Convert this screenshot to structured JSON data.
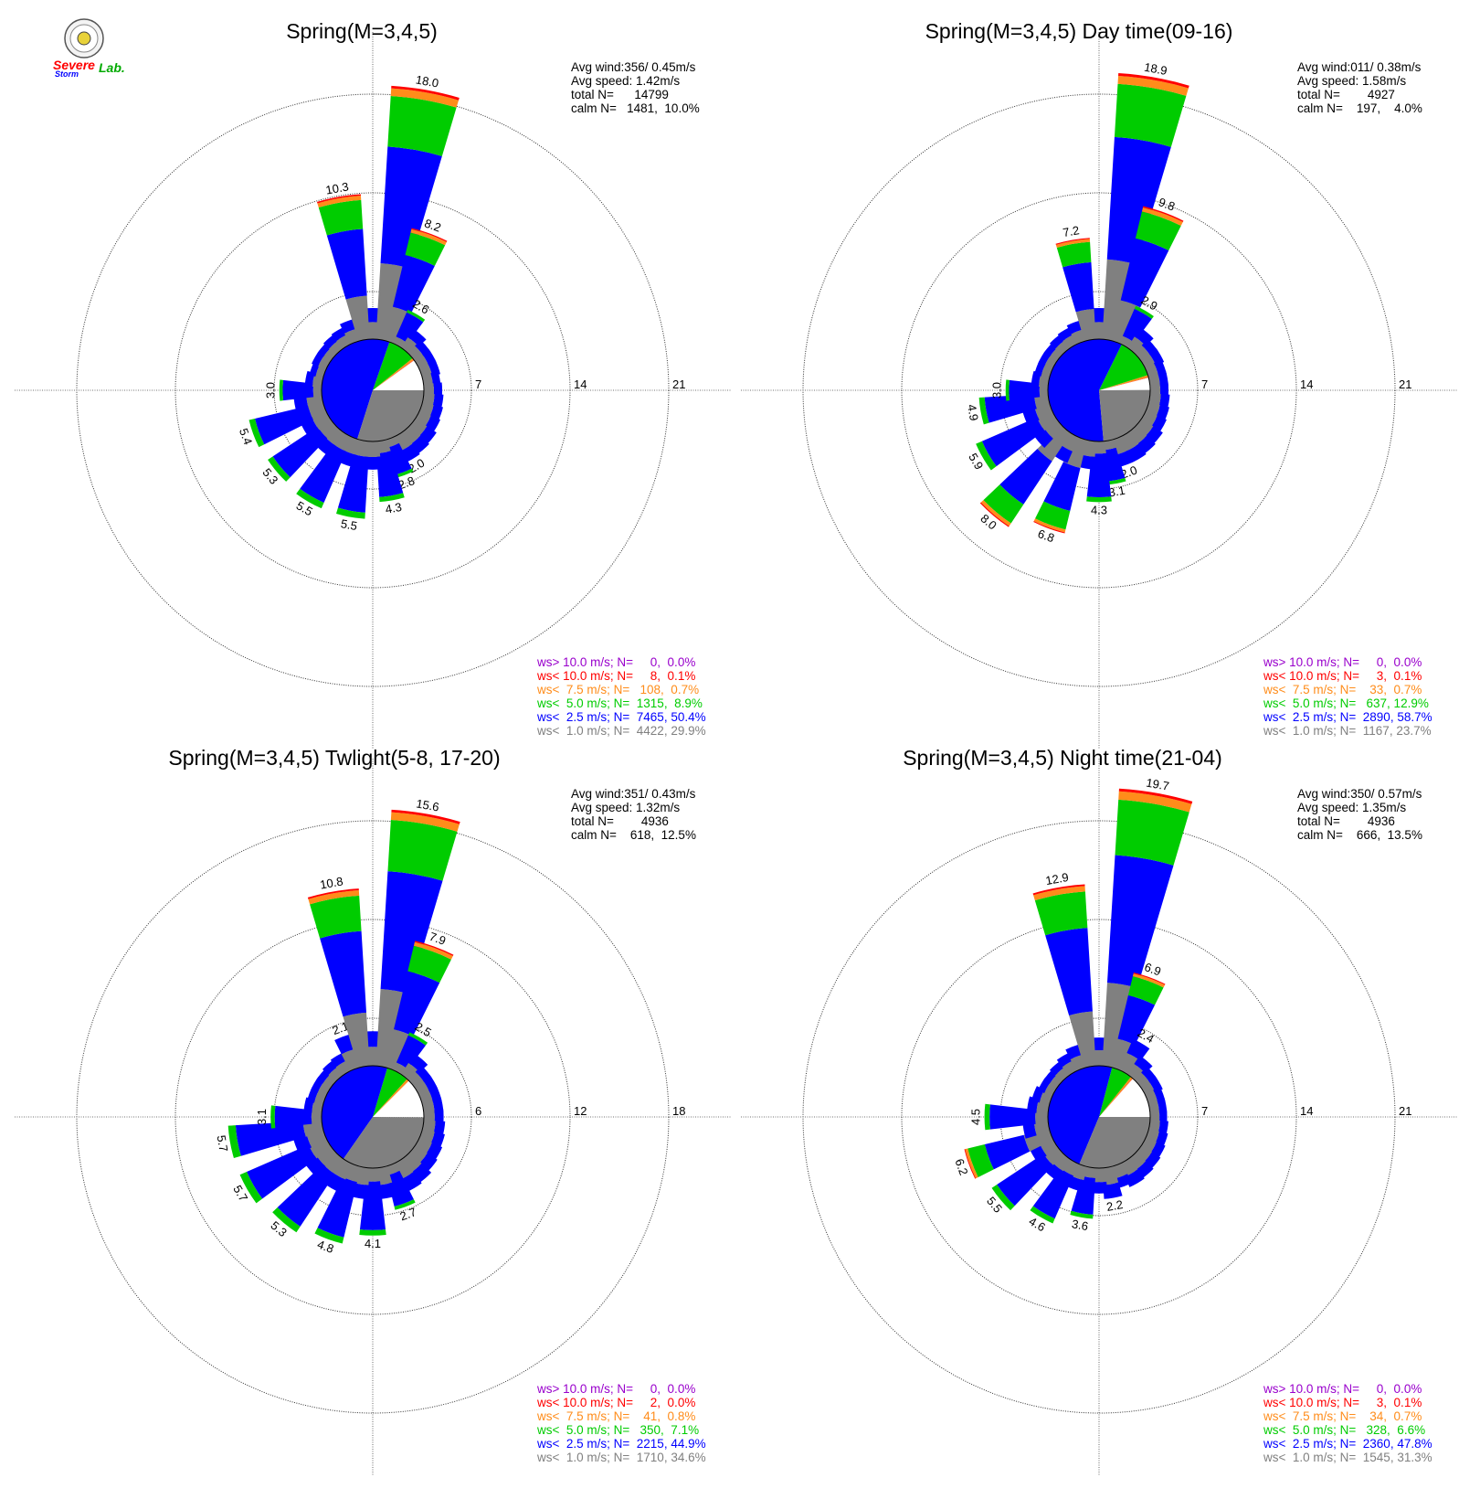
{
  "logo": {
    "name": "Severe Storm Lab.",
    "text_severe": "Severe",
    "text_storm": "Storm",
    "text_lab": "Lab."
  },
  "colors": {
    "calm": "#ffffff",
    "lt1": "#808080",
    "lt2_5": "#0000ff",
    "lt5": "#00cc00",
    "lt7_5": "#ff8c1a",
    "lt10": "#ff0000",
    "gt10": "#9900cc"
  },
  "chart_data": [
    {
      "type": "windrose",
      "title": "Spring(M=3,4,5)",
      "rmax": 21,
      "ring_ticks": [
        "7",
        "14",
        "21"
      ],
      "stats": [
        "Avg wind:356/ 0.45m/s",
        "Avg speed: 1.42m/s",
        "total N=      14799",
        "calm N=   1481,  10.0%"
      ],
      "legend": [
        {
          "key": "gt10",
          "text": "ws> 10.0 m/s; N=     0,  0.0%"
        },
        {
          "key": "lt10",
          "text": "ws< 10.0 m/s; N=     8,  0.1%"
        },
        {
          "key": "lt7_5",
          "text": "ws<  7.5 m/s; N=   108,  0.7%"
        },
        {
          "key": "lt5",
          "text": "ws<  5.0 m/s; N=  1315,  8.9%"
        },
        {
          "key": "lt2_5",
          "text": "ws<  2.5 m/s; N=  7465, 50.4%"
        },
        {
          "key": "lt1",
          "text": "ws<  1.0 m/s; N=  4422, 29.9%"
        }
      ],
      "pie_percent": {
        "calm": 10.0,
        "lt1": 29.9,
        "lt2_5": 50.4,
        "lt5": 8.9,
        "lt7_5": 0.7,
        "lt10": 0.1
      },
      "sector_direction_deg": [
        0,
        10,
        20,
        30,
        40,
        50,
        60,
        70,
        80,
        90,
        100,
        110,
        120,
        130,
        140,
        150,
        160,
        170,
        180,
        190,
        200,
        210,
        220,
        230,
        240,
        250,
        260,
        270,
        280,
        290,
        300,
        310,
        320,
        330,
        340,
        350
      ],
      "sector_percent": [
        2.2,
        18.0,
        8.2,
        2.6,
        1.6,
        1.3,
        1.3,
        1.3,
        1.2,
        1.3,
        1.4,
        1.5,
        1.6,
        1.8,
        1.9,
        2.0,
        2.8,
        4.3,
        2.0,
        5.5,
        2.0,
        5.5,
        2.0,
        5.3,
        2.0,
        5.4,
        2.0,
        3.0,
        1.2,
        1.0,
        1.1,
        1.1,
        1.2,
        1.3,
        1.6,
        10.3
      ],
      "sector_labels": [
        "",
        "18.0",
        "8.2",
        "2.6",
        "",
        "",
        "",
        "",
        "",
        "",
        "",
        "",
        "",
        "",
        "",
        "2.0",
        "2.8",
        "4.3",
        "",
        "5.5",
        "",
        "5.5",
        "",
        "5.3",
        "",
        "5.4",
        "",
        "3.0",
        "",
        "",
        "",
        "",
        "",
        "",
        "",
        "10.3"
      ]
    },
    {
      "type": "windrose",
      "title": "Spring(M=3,4,5) Day time(09-16)",
      "rmax": 21,
      "ring_ticks": [
        "7",
        "14",
        "21"
      ],
      "stats": [
        "Avg wind:011/ 0.38m/s",
        "Avg speed: 1.58m/s",
        "total N=        4927",
        "calm N=    197,    4.0%"
      ],
      "legend": [
        {
          "key": "gt10",
          "text": "ws> 10.0 m/s; N=     0,  0.0%"
        },
        {
          "key": "lt10",
          "text": "ws< 10.0 m/s; N=     3,  0.1%"
        },
        {
          "key": "lt7_5",
          "text": "ws<  7.5 m/s; N=    33,  0.7%"
        },
        {
          "key": "lt5",
          "text": "ws<  5.0 m/s; N=   637, 12.9%"
        },
        {
          "key": "lt2_5",
          "text": "ws<  2.5 m/s; N=  2890, 58.7%"
        },
        {
          "key": "lt1",
          "text": "ws<  1.0 m/s; N=  1167, 23.7%"
        }
      ],
      "pie_percent": {
        "calm": 4.0,
        "lt1": 23.7,
        "lt2_5": 58.7,
        "lt5": 12.9,
        "lt7_5": 0.7,
        "lt10": 0.1
      },
      "sector_direction_deg": [
        0,
        10,
        20,
        30,
        40,
        50,
        60,
        70,
        80,
        90,
        100,
        110,
        120,
        130,
        140,
        150,
        160,
        170,
        180,
        190,
        200,
        210,
        220,
        230,
        240,
        250,
        260,
        270,
        280,
        290,
        300,
        310,
        320,
        330,
        340,
        350
      ],
      "sector_percent": [
        2.2,
        18.9,
        9.8,
        2.9,
        1.7,
        1.4,
        1.4,
        1.3,
        1.3,
        1.3,
        1.4,
        1.5,
        1.6,
        1.8,
        1.9,
        2.0,
        2.0,
        3.1,
        4.3,
        2.0,
        6.8,
        2.0,
        8.0,
        2.0,
        5.9,
        2.0,
        4.9,
        3.0,
        1.2,
        1.1,
        1.1,
        1.1,
        1.2,
        1.3,
        1.5,
        7.2
      ],
      "sector_labels": [
        "",
        "18.9",
        "9.8",
        "2.9",
        "",
        "",
        "",
        "",
        "",
        "",
        "",
        "",
        "",
        "",
        "",
        "",
        "2.0",
        "3.1",
        "4.3",
        "",
        "6.8",
        "",
        "8.0",
        "",
        "5.9",
        "",
        "4.9",
        "3.0",
        "",
        "",
        "",
        "",
        "",
        "",
        "",
        "7.2"
      ]
    },
    {
      "type": "windrose",
      "title": "Spring(M=3,4,5) Twlight(5-8, 17-20)",
      "rmax": 18,
      "ring_ticks": [
        "6",
        "12",
        "18"
      ],
      "stats": [
        "Avg wind:351/ 0.43m/s",
        "Avg speed: 1.32m/s",
        "total N=        4936",
        "calm N=    618,  12.5%"
      ],
      "legend": [
        {
          "key": "gt10",
          "text": "ws> 10.0 m/s; N=     0,  0.0%"
        },
        {
          "key": "lt10",
          "text": "ws< 10.0 m/s; N=     2,  0.0%"
        },
        {
          "key": "lt7_5",
          "text": "ws<  7.5 m/s; N=    41,  0.8%"
        },
        {
          "key": "lt5",
          "text": "ws<  5.0 m/s; N=   350,  7.1%"
        },
        {
          "key": "lt2_5",
          "text": "ws<  2.5 m/s; N=  2215, 44.9%"
        },
        {
          "key": "lt1",
          "text": "ws<  1.0 m/s; N=  1710, 34.6%"
        }
      ],
      "pie_percent": {
        "calm": 12.5,
        "lt1": 34.6,
        "lt2_5": 44.9,
        "lt5": 7.1,
        "lt7_5": 0.8,
        "lt10": 0.0
      },
      "sector_direction_deg": [
        0,
        10,
        20,
        30,
        40,
        50,
        60,
        70,
        80,
        90,
        100,
        110,
        120,
        130,
        140,
        150,
        160,
        170,
        180,
        190,
        200,
        210,
        220,
        230,
        240,
        250,
        260,
        270,
        280,
        290,
        300,
        310,
        320,
        330,
        340,
        350
      ],
      "sector_percent": [
        2.1,
        15.6,
        7.9,
        2.5,
        1.5,
        1.2,
        1.2,
        1.2,
        1.2,
        1.2,
        1.3,
        1.4,
        1.5,
        1.6,
        1.8,
        1.9,
        2.7,
        1.9,
        4.1,
        1.9,
        4.8,
        1.9,
        5.3,
        1.9,
        5.7,
        1.9,
        5.7,
        3.1,
        1.1,
        1.0,
        1.0,
        1.0,
        1.1,
        1.2,
        2.1,
        10.8
      ],
      "sector_labels": [
        "",
        "15.6",
        "7.9",
        "2.5",
        "",
        "",
        "",
        "",
        "",
        "",
        "",
        "",
        "",
        "",
        "",
        "",
        "2.7",
        "",
        "4.1",
        "",
        "4.8",
        "",
        "5.3",
        "",
        "5.7",
        "",
        "5.7",
        "3.1",
        "",
        "",
        "",
        "",
        "",
        "",
        "2.1",
        "10.8"
      ]
    },
    {
      "type": "windrose",
      "title": "Spring(M=3,4,5) Night time(21-04)",
      "rmax": 21,
      "ring_ticks": [
        "7",
        "14",
        "21"
      ],
      "stats": [
        "Avg wind:350/ 0.57m/s",
        "Avg speed: 1.35m/s",
        "total N=        4936",
        "calm N=    666,  13.5%"
      ],
      "legend": [
        {
          "key": "gt10",
          "text": "ws> 10.0 m/s; N=     0,  0.0%"
        },
        {
          "key": "lt10",
          "text": "ws< 10.0 m/s; N=     3,  0.1%"
        },
        {
          "key": "lt7_5",
          "text": "ws<  7.5 m/s; N=    34,  0.7%"
        },
        {
          "key": "lt5",
          "text": "ws<  5.0 m/s; N=   328,  6.6%"
        },
        {
          "key": "lt2_5",
          "text": "ws<  2.5 m/s; N=  2360, 47.8%"
        },
        {
          "key": "lt1",
          "text": "ws<  1.0 m/s; N=  1545, 31.3%"
        }
      ],
      "pie_percent": {
        "calm": 13.5,
        "lt1": 31.3,
        "lt2_5": 47.8,
        "lt5": 6.6,
        "lt7_5": 0.7,
        "lt10": 0.1
      },
      "sector_direction_deg": [
        0,
        10,
        20,
        30,
        40,
        50,
        60,
        70,
        80,
        90,
        100,
        110,
        120,
        130,
        140,
        150,
        160,
        170,
        180,
        190,
        200,
        210,
        220,
        230,
        240,
        250,
        260,
        270,
        280,
        290,
        300,
        310,
        320,
        330,
        340,
        350
      ],
      "sector_percent": [
        2.0,
        19.7,
        6.9,
        2.4,
        1.6,
        1.3,
        1.3,
        1.2,
        1.2,
        1.2,
        1.3,
        1.4,
        1.5,
        1.6,
        1.7,
        1.8,
        1.6,
        2.2,
        1.8,
        3.6,
        1.8,
        4.6,
        1.8,
        5.5,
        1.8,
        6.2,
        1.8,
        4.5,
        1.5,
        1.3,
        1.1,
        1.1,
        1.2,
        1.4,
        1.7,
        12.9
      ],
      "sector_labels": [
        "",
        "19.7",
        "6.9",
        "2.4",
        "",
        "",
        "",
        "",
        "",
        "",
        "",
        "",
        "",
        "",
        "",
        "",
        "",
        "2.2",
        "",
        "3.6",
        "",
        "4.6",
        "",
        "5.5",
        "",
        "6.2",
        "",
        "4.5",
        "",
        "",
        "",
        "",
        "",
        "",
        "",
        "12.9"
      ]
    }
  ]
}
